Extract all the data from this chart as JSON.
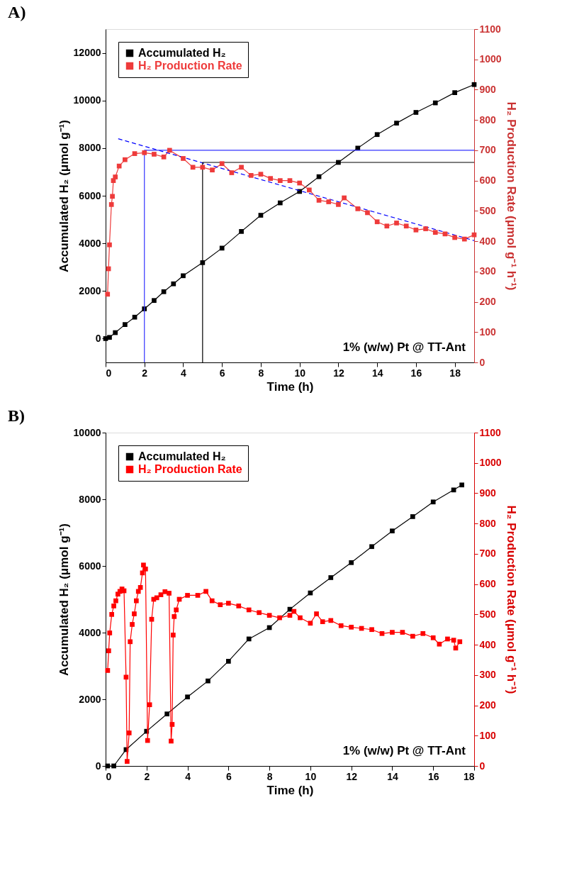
{
  "chart_data": [
    {
      "type": "line",
      "title": "A)",
      "xlabel": "Time (h)",
      "ylabel": "Accumulated H₂ (μmol g⁻¹)",
      "y2label": "H₂ Production Rate (μmol g⁻¹ h⁻¹)",
      "xlim": [
        0,
        19
      ],
      "xticks": [
        0,
        2,
        4,
        6,
        8,
        10,
        12,
        14,
        16,
        18
      ],
      "ylim": [
        -1000,
        13000
      ],
      "yticks": [
        0,
        2000,
        4000,
        6000,
        8000,
        10000,
        12000
      ],
      "y2lim": [
        0,
        1100
      ],
      "y2ticks": [
        0,
        100,
        200,
        300,
        400,
        500,
        600,
        700,
        800,
        900,
        1000,
        1100
      ],
      "grid": false,
      "legend": "top left",
      "marker": "square",
      "line_style": "solid",
      "annotations": [
        "1% (w/w) Pt @ TT-Ant"
      ],
      "series": [
        {
          "name": "Accumulated H₂",
          "color": "#000000",
          "x": [
            0,
            0.2,
            0.5,
            1,
            1.5,
            2,
            2.5,
            3,
            3.5,
            4,
            5,
            6,
            7,
            8,
            9,
            10,
            11,
            12,
            13,
            14,
            15,
            16,
            17,
            18,
            19
          ],
          "values": [
            0,
            50,
            250,
            590,
            900,
            1250,
            1600,
            1970,
            2300,
            2640,
            3190,
            3800,
            4500,
            5180,
            5700,
            6180,
            6800,
            7400,
            8000,
            8570,
            9050,
            9500,
            9900,
            10330,
            10670
          ]
        },
        {
          "name": "H₂ Production Rate",
          "color": "#ee3b3b",
          "axis": "y2",
          "x": [
            0.1,
            0.15,
            0.2,
            0.3,
            0.35,
            0.4,
            0.5,
            0.7,
            1,
            1.5,
            2,
            2.5,
            3,
            3.3,
            4,
            4.5,
            5,
            5.5,
            6,
            6.5,
            7,
            7.5,
            8,
            8.5,
            9,
            9.5,
            10,
            10.5,
            11,
            11.5,
            12,
            12.3,
            13,
            13.5,
            14,
            14.5,
            15,
            15.5,
            16,
            16.5,
            17,
            17.5,
            18,
            18.5,
            19
          ],
          "values": [
            225,
            309,
            388,
            521,
            548,
            600,
            612,
            648,
            669,
            689,
            692,
            687,
            678,
            700,
            673,
            644,
            644,
            635,
            656,
            626,
            644,
            617,
            621,
            607,
            600,
            600,
            592,
            569,
            535,
            530,
            521,
            543,
            507,
            494,
            464,
            450,
            460,
            450,
            437,
            441,
            429,
            424,
            412,
            407,
            421
          ]
        },
        {
          "color": "#0000ff",
          "axis": "y2",
          "line_style": "dashed",
          "marker": "none",
          "x": [
            0.65,
            19
          ],
          "values": [
            738,
            402
          ]
        },
        {
          "color": "#3333ff",
          "axis": "y2",
          "marker": "none",
          "x": [
            2,
            2,
            19
          ],
          "values": [
            0,
            700,
            700
          ]
        },
        {
          "color": "#000000",
          "axis": "y2",
          "marker": "none",
          "x": [
            5,
            5,
            19
          ],
          "values": [
            0,
            660,
            660
          ]
        }
      ]
    },
    {
      "type": "line",
      "title": "B)",
      "xlabel": "Time (h)",
      "ylabel": "Accumulated H₂ (μmol g⁻¹)",
      "y2label": "H₂ Production Rate (μmol g⁻¹ h⁻¹)",
      "xlim": [
        0,
        18
      ],
      "xticks": [
        0,
        2,
        4,
        6,
        8,
        10,
        12,
        14,
        16,
        18
      ],
      "ylim": [
        0,
        10000
      ],
      "yticks": [
        0,
        2000,
        4000,
        6000,
        8000,
        10000
      ],
      "y2lim": [
        0,
        1100
      ],
      "y2ticks": [
        0,
        100,
        200,
        300,
        400,
        500,
        600,
        700,
        800,
        900,
        1000,
        1100
      ],
      "grid": false,
      "legend": "top left",
      "marker": "square",
      "line_style": "solid",
      "annotations": [
        "1% (w/w) Pt @ TT-Ant"
      ],
      "series": [
        {
          "name": "Accumulated H₂",
          "color": "#000000",
          "x": [
            0.1,
            0.4,
            1,
            2,
            3,
            4,
            5,
            6,
            7,
            8,
            9,
            10,
            11,
            12,
            13,
            14,
            15,
            16,
            17,
            17.4
          ],
          "values": [
            0,
            0,
            490,
            1040,
            1560,
            2070,
            2550,
            3140,
            3810,
            4150,
            4700,
            5190,
            5650,
            6100,
            6580,
            7050,
            7480,
            7920,
            8280,
            8430
          ]
        },
        {
          "name": "H₂ Production Rate",
          "color": "#ff0000",
          "axis": "y2",
          "x": [
            0.1,
            0.15,
            0.2,
            0.3,
            0.4,
            0.5,
            0.6,
            0.7,
            0.8,
            0.9,
            1.0,
            1.05,
            1.15,
            1.2,
            1.3,
            1.4,
            1.5,
            1.6,
            1.7,
            1.8,
            1.85,
            1.95,
            2.05,
            2.15,
            2.25,
            2.35,
            2.5,
            2.7,
            2.9,
            3.1,
            3.2,
            3.25,
            3.3,
            3.35,
            3.45,
            3.6,
            4,
            4.5,
            4.9,
            5.2,
            5.6,
            6,
            6.5,
            7,
            7.5,
            8,
            8.5,
            9,
            9.2,
            9.5,
            10,
            10.3,
            10.6,
            11,
            11.5,
            12,
            12.5,
            13,
            13.5,
            14,
            14.5,
            15,
            15.5,
            16,
            16.3,
            16.7,
            17,
            17.1,
            17.3
          ],
          "values": [
            315,
            380,
            439,
            500,
            528,
            545,
            567,
            576,
            584,
            578,
            293,
            15,
            109,
            410,
            467,
            502,
            545,
            576,
            589,
            637,
            663,
            650,
            84,
            202,
            484,
            550,
            555,
            565,
            575,
            570,
            82,
            137,
            432,
            493,
            515,
            550,
            563,
            563,
            576,
            545,
            532,
            537,
            528,
            515,
            506,
            497,
            489,
            497,
            510,
            489,
            471,
            502,
            476,
            480,
            463,
            458,
            454,
            450,
            437,
            441,
            441,
            428,
            437,
            423,
            402,
            419,
            415,
            389,
            410
          ]
        }
      ]
    }
  ]
}
